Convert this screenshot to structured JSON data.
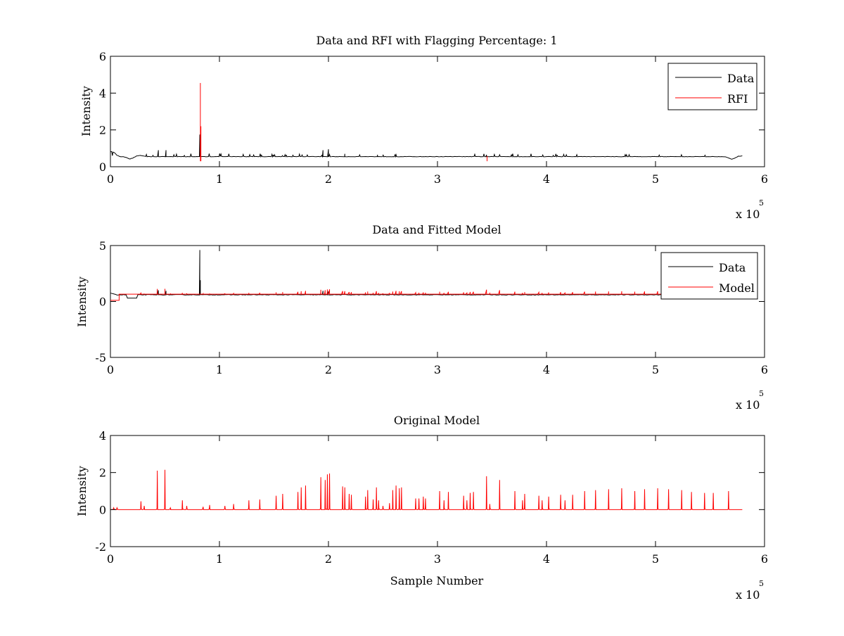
{
  "chart_data": [
    {
      "type": "line",
      "title": "Data and RFI with Flagging Percentage: 1",
      "xlabel": "",
      "ylabel": "Intensity",
      "xlim": [
        0,
        600000
      ],
      "ylim": [
        0,
        6
      ],
      "xticks": [
        0,
        1,
        2,
        3,
        4,
        5,
        6
      ],
      "yticks": [
        0,
        2,
        4,
        6
      ],
      "x_exponent_label": "x 10",
      "x_exponent_power": "5",
      "x_range": [
        0,
        580000
      ],
      "grid": false,
      "legend_position": "top-right",
      "series": [
        {
          "name": "Data",
          "color": "#000000",
          "baseline": 0.55,
          "dips": [
            [
              0,
              0.75
            ],
            [
              3000,
              0.7
            ],
            [
              18000,
              0.42
            ],
            [
              27000,
              0.62
            ],
            [
              570000,
              0.4
            ],
            [
              580000,
              0.6
            ]
          ],
          "spikes": [
            [
              44000,
              0.9
            ],
            [
              51000,
              0.9
            ],
            [
              82000,
              1.75
            ],
            [
              150000,
              0.62
            ],
            [
              195000,
              0.9
            ],
            [
              200000,
              0.95
            ],
            [
              215000,
              0.7
            ],
            [
              245000,
              0.65
            ],
            [
              262000,
              0.7
            ],
            [
              345000,
              0.65
            ]
          ]
        },
        {
          "name": "RFI",
          "color": "#ff0000",
          "spikes": [
            [
              82500,
              4.55
            ],
            [
              83000,
              2.2
            ],
            [
              345500,
              0.58
            ]
          ]
        }
      ]
    },
    {
      "type": "line",
      "title": "Data and Fitted Model",
      "xlabel": "",
      "ylabel": "Intensity",
      "xlim": [
        0,
        600000
      ],
      "ylim": [
        -5,
        5
      ],
      "xticks": [
        0,
        1,
        2,
        3,
        4,
        5,
        6
      ],
      "yticks": [
        -5,
        0,
        5
      ],
      "x_exponent_label": "x 10",
      "x_exponent_power": "5",
      "x_range": [
        0,
        580000
      ],
      "grid": false,
      "legend_position": "top-right",
      "series": [
        {
          "name": "Data",
          "color": "#000000",
          "baseline": 0.6,
          "spikes": [
            [
              82000,
              4.6
            ],
            [
              82500,
              1.9
            ],
            [
              44000,
              1.0
            ],
            [
              51000,
              0.95
            ],
            [
              195000,
              0.95
            ],
            [
              200000,
              0.9
            ]
          ]
        },
        {
          "name": "Model",
          "color": "#ff0000",
          "baseline": 0.65,
          "start_segment": [
            [
              0,
              0.1
            ],
            [
              8000,
              0.1
            ],
            [
              8000,
              0.65
            ]
          ],
          "spike_scale": 0.15
        }
      ]
    },
    {
      "type": "line",
      "title": "Original Model",
      "xlabel": "Sample Number",
      "ylabel": "Intensity",
      "xlim": [
        0,
        600000
      ],
      "ylim": [
        -2,
        4
      ],
      "xticks": [
        0,
        1,
        2,
        3,
        4,
        5,
        6
      ],
      "yticks": [
        -2,
        0,
        2,
        4
      ],
      "x_exponent_label": "x 10",
      "x_exponent_power": "5",
      "x_range": [
        0,
        580000
      ],
      "grid": false,
      "series": [
        {
          "name": "",
          "color": "#ff0000",
          "baseline": 0.0,
          "spikes": [
            [
              3000,
              0.1
            ],
            [
              6000,
              0.1
            ],
            [
              28000,
              0.45
            ],
            [
              31000,
              0.2
            ],
            [
              43000,
              2.1
            ],
            [
              50000,
              2.15
            ],
            [
              55000,
              0.1
            ],
            [
              66000,
              0.5
            ],
            [
              70000,
              0.2
            ],
            [
              85000,
              0.15
            ],
            [
              91000,
              0.25
            ],
            [
              105000,
              0.2
            ],
            [
              113000,
              0.3
            ],
            [
              127000,
              0.5
            ],
            [
              137000,
              0.55
            ],
            [
              152000,
              0.75
            ],
            [
              158000,
              0.85
            ],
            [
              172000,
              0.95
            ],
            [
              175000,
              1.2
            ],
            [
              179000,
              1.3
            ],
            [
              193000,
              1.75
            ],
            [
              197000,
              1.6
            ],
            [
              199000,
              1.9
            ],
            [
              201000,
              1.95
            ],
            [
              213000,
              1.25
            ],
            [
              215000,
              1.2
            ],
            [
              219000,
              0.85
            ],
            [
              221000,
              0.8
            ],
            [
              234000,
              0.7
            ],
            [
              236000,
              1.05
            ],
            [
              241000,
              0.55
            ],
            [
              244000,
              1.2
            ],
            [
              246000,
              0.5
            ],
            [
              250000,
              0.2
            ],
            [
              256000,
              0.35
            ],
            [
              259000,
              1.05
            ],
            [
              262000,
              1.3
            ],
            [
              265000,
              1.15
            ],
            [
              267000,
              1.2
            ],
            [
              280000,
              0.6
            ],
            [
              283000,
              0.6
            ],
            [
              287000,
              0.7
            ],
            [
              289000,
              0.6
            ],
            [
              302000,
              1.0
            ],
            [
              306000,
              0.5
            ],
            [
              310000,
              0.95
            ],
            [
              324000,
              0.75
            ],
            [
              327000,
              0.5
            ],
            [
              330000,
              0.9
            ],
            [
              333000,
              0.95
            ],
            [
              345000,
              1.8
            ],
            [
              348000,
              0.3
            ],
            [
              357000,
              1.6
            ],
            [
              371000,
              1.0
            ],
            [
              378000,
              0.5
            ],
            [
              380000,
              0.85
            ],
            [
              393000,
              0.75
            ],
            [
              396000,
              0.5
            ],
            [
              402000,
              0.7
            ],
            [
              413000,
              0.8
            ],
            [
              417000,
              0.5
            ],
            [
              424000,
              0.8
            ],
            [
              435000,
              1.0
            ],
            [
              445000,
              1.05
            ],
            [
              457000,
              1.1
            ],
            [
              469000,
              1.15
            ],
            [
              481000,
              1.0
            ],
            [
              490000,
              1.1
            ],
            [
              502000,
              1.15
            ],
            [
              512000,
              1.1
            ],
            [
              524000,
              1.05
            ],
            [
              533000,
              0.95
            ],
            [
              545000,
              0.9
            ],
            [
              553000,
              0.9
            ],
            [
              567000,
              1.0
            ]
          ]
        }
      ]
    }
  ]
}
